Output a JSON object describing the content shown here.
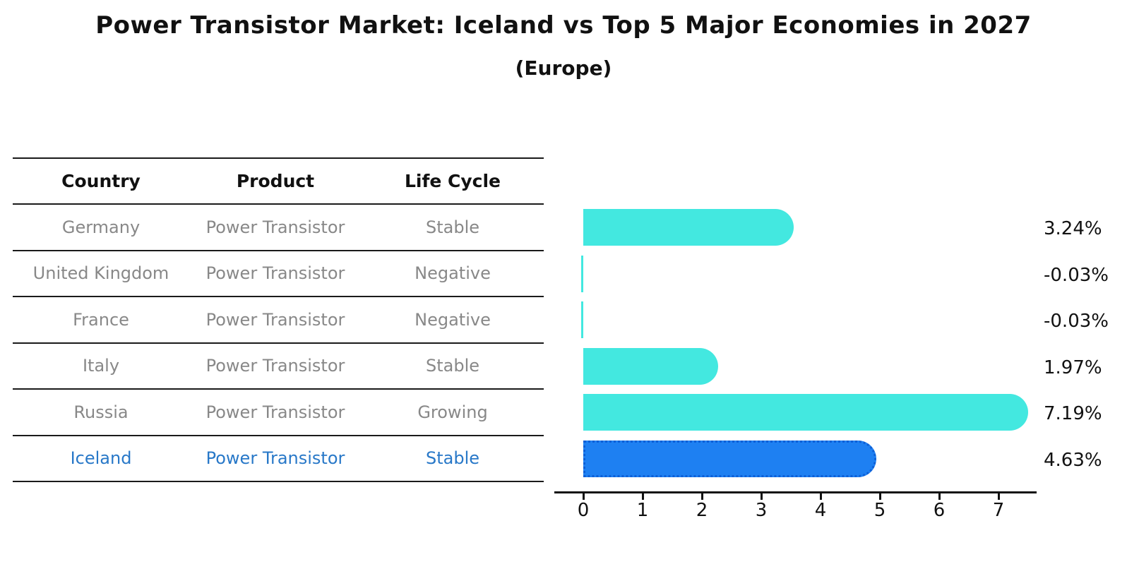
{
  "title": "Power Transistor Market: Iceland vs Top 5 Major Economies in 2027",
  "subtitle": "(Europe)",
  "table": {
    "columns": [
      "Country",
      "Product",
      "Life Cycle"
    ],
    "rows": [
      {
        "country": "Germany",
        "product": "Power Transistor",
        "life_cycle": "Stable",
        "highlighted": false
      },
      {
        "country": "United Kingdom",
        "product": "Power Transistor",
        "life_cycle": "Negative",
        "highlighted": false
      },
      {
        "country": "France",
        "product": "Power Transistor",
        "life_cycle": "Negative",
        "highlighted": false
      },
      {
        "country": "Italy",
        "product": "Power Transistor",
        "life_cycle": "Stable",
        "highlighted": false
      },
      {
        "country": "Russia",
        "product": "Power Transistor",
        "life_cycle": "Growing",
        "highlighted": false
      },
      {
        "country": "Iceland",
        "product": "Power Transistor",
        "life_cycle": "Stable",
        "highlighted": true
      }
    ]
  },
  "chart_data": {
    "type": "bar",
    "orientation": "horizontal",
    "title": "Power Transistor Market: Iceland vs Top 5 Major Economies in 2027",
    "subtitle": "(Europe)",
    "categories": [
      "Germany",
      "United Kingdom",
      "France",
      "Italy",
      "Russia",
      "Iceland"
    ],
    "values": [
      3.24,
      -0.03,
      -0.03,
      1.97,
      7.19,
      4.63
    ],
    "value_labels": [
      "3.24%",
      "-0.03%",
      "-0.03%",
      "1.97%",
      "7.19%",
      "4.63%"
    ],
    "xticks": [
      "0",
      "1",
      "2",
      "3",
      "4",
      "5",
      "6",
      "7"
    ],
    "xlim": [
      -0.5,
      7.6
    ],
    "xlabel": "",
    "ylabel": "",
    "grid": false,
    "legend": "none",
    "bar_color": "#43E8E0",
    "highlight_color": "#1E80F2",
    "highlight_border_color": "#0D5FD6",
    "highlight_index": 5,
    "highlight_category": "Iceland"
  },
  "colors": {
    "background": "#ffffff",
    "text_primary": "#111111",
    "text_muted": "#888888",
    "highlight_text": "#2878C8",
    "table_line": "#1a1a1a"
  }
}
